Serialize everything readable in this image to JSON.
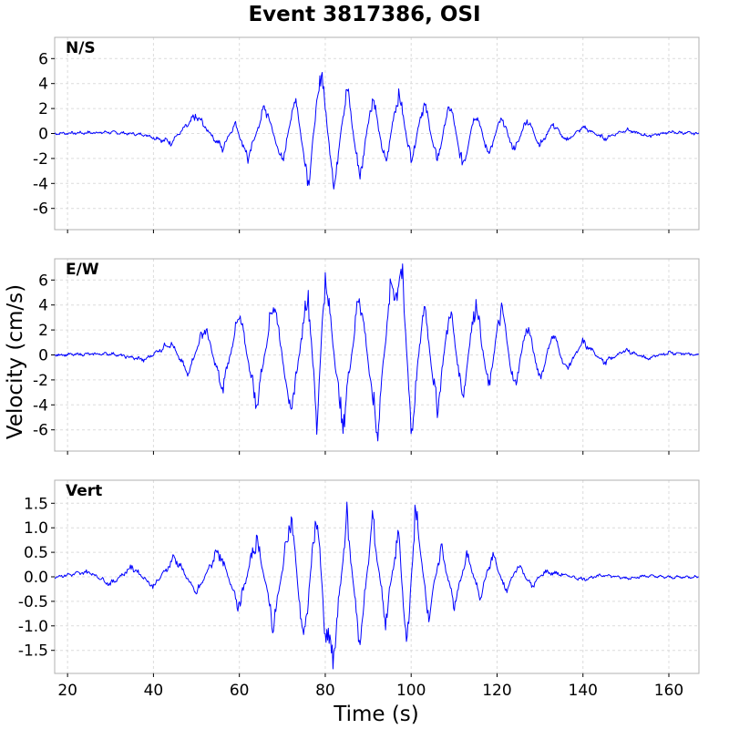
{
  "chart_data": {
    "type": "line",
    "title": "Event 3817386, OSI",
    "xlabel": "Time (s)",
    "ylabel": "Velocity (cm/s)",
    "xlim": [
      17,
      167
    ],
    "xticks": [
      20,
      40,
      60,
      80,
      100,
      120,
      140,
      160
    ],
    "xtick_labels": [
      "20",
      "40",
      "60",
      "80",
      "100",
      "120",
      "140",
      "160"
    ],
    "grid": true,
    "line_color": "#0000ff",
    "panels": [
      {
        "name": "N/S",
        "ylim": [
          -7.7,
          7.7
        ],
        "yticks": [
          -6,
          -4,
          -2,
          0,
          2,
          4,
          6
        ],
        "ytick_labels": [
          "-6",
          "-4",
          "-2",
          "0",
          "2",
          "4",
          "6"
        ],
        "x": [
          17,
          30,
          38,
          44,
          50,
          56,
          59,
          62,
          66,
          70,
          73,
          76,
          79,
          82,
          85,
          88,
          91,
          94,
          97,
          100,
          103,
          106,
          109,
          112,
          115,
          118,
          121,
          124,
          127,
          130,
          133,
          136,
          140,
          145,
          150,
          155,
          160,
          167
        ],
        "values": [
          0,
          0.1,
          -0.1,
          -0.7,
          1.4,
          -1.2,
          0.8,
          -2.0,
          2.2,
          -2.4,
          3.0,
          -4.0,
          5.2,
          -4.3,
          3.8,
          -3.6,
          3.1,
          -2.6,
          3.4,
          -2.2,
          2.6,
          -2.3,
          2.5,
          -2.7,
          1.8,
          -1.7,
          1.3,
          -1.4,
          1.2,
          -1.0,
          0.8,
          -0.6,
          0.5,
          -0.4,
          0.3,
          -0.2,
          0.1,
          0
        ]
      },
      {
        "name": "E/W",
        "ylim": [
          -7.7,
          7.7
        ],
        "yticks": [
          -6,
          -4,
          -2,
          0,
          2,
          4,
          6
        ],
        "ytick_labels": [
          "-6",
          "-4",
          "-2",
          "0",
          "2",
          "4",
          "6"
        ],
        "x": [
          17,
          30,
          38,
          44,
          48,
          52,
          56,
          60,
          64,
          68,
          72,
          76,
          78,
          80,
          84,
          88,
          92,
          95,
          98,
          100,
          103,
          106,
          109,
          112,
          115,
          118,
          121,
          124,
          127,
          130,
          133,
          136,
          140,
          145,
          150,
          155,
          160,
          167
        ],
        "values": [
          0,
          0.1,
          -0.4,
          1.0,
          -1.5,
          2.3,
          -2.8,
          3.3,
          -4.0,
          4.6,
          -4.8,
          5.2,
          -5.5,
          6.4,
          -5.8,
          5.2,
          -6.3,
          4.8,
          6.2,
          -6.2,
          4.2,
          -4.5,
          3.8,
          -3.5,
          4.5,
          -2.8,
          4.0,
          -2.8,
          2.5,
          -2.0,
          1.8,
          -1.2,
          1.0,
          -0.6,
          0.4,
          -0.3,
          0.2,
          0
        ]
      },
      {
        "name": "Vert",
        "ylim": [
          -1.97,
          1.97
        ],
        "yticks": [
          -1.5,
          -1.0,
          -0.5,
          0.0,
          0.5,
          1.0,
          1.5
        ],
        "ytick_labels": [
          "-1.5",
          "-1.0",
          "-0.5",
          "0.0",
          "0.5",
          "1.0",
          "1.5"
        ],
        "x": [
          17,
          25,
          30,
          35,
          40,
          45,
          50,
          55,
          60,
          64,
          68,
          72,
          75,
          78,
          80,
          82,
          85,
          88,
          91,
          94,
          97,
          99,
          101,
          104,
          107,
          110,
          113,
          116,
          119,
          122,
          125,
          128,
          131,
          135,
          140,
          145,
          150,
          155,
          160,
          167
        ],
        "values": [
          0,
          0.1,
          -0.15,
          0.2,
          -0.2,
          0.4,
          -0.35,
          0.55,
          -0.6,
          0.8,
          -1.0,
          1.3,
          -1.4,
          1.4,
          -1.2,
          -1.6,
          1.2,
          -1.4,
          1.15,
          -0.9,
          0.9,
          -1.5,
          1.35,
          -0.8,
          0.6,
          -0.6,
          0.45,
          -0.4,
          0.45,
          -0.3,
          0.25,
          -0.2,
          0.1,
          0.05,
          -0.05,
          0.04,
          -0.03,
          0.02,
          -0.01,
          0
        ]
      }
    ]
  }
}
